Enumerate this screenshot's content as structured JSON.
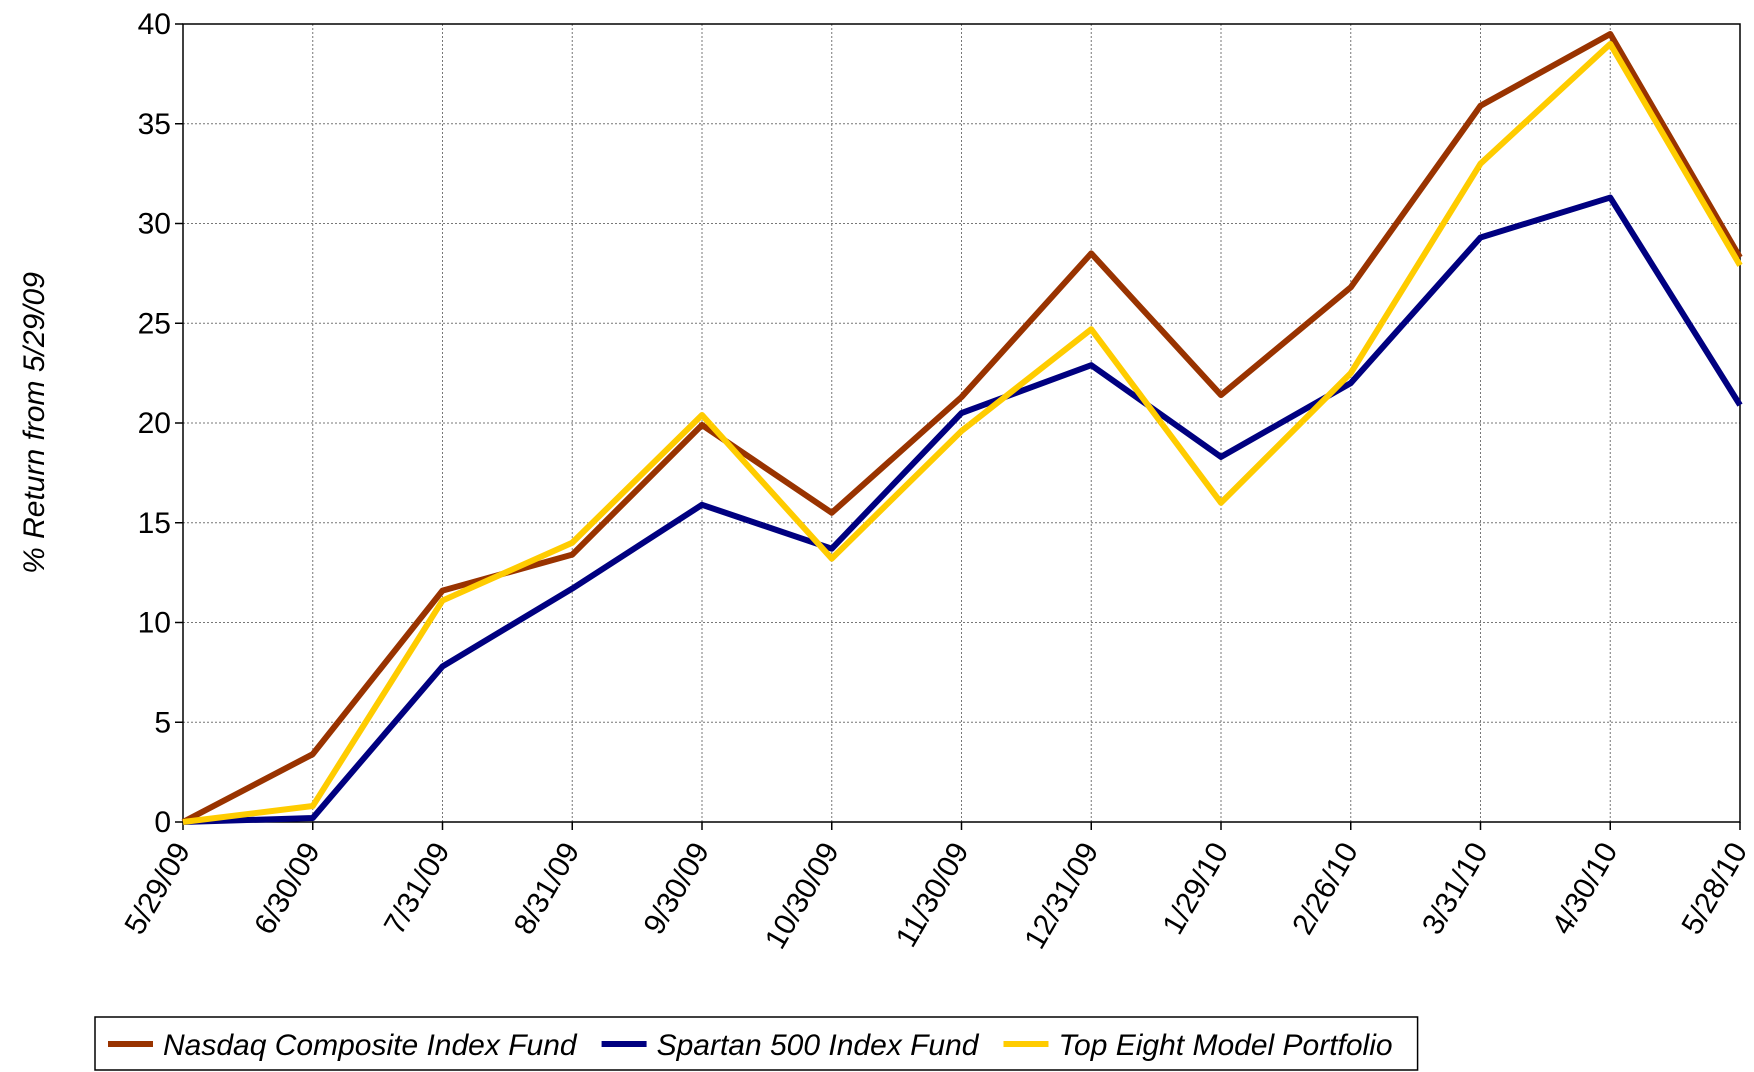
{
  "chart_data": {
    "type": "line",
    "y_label": "% Return from 5/29/09",
    "categories": [
      "5/29/09",
      "6/30/09",
      "7/31/09",
      "8/31/09",
      "9/30/09",
      "10/30/09",
      "11/30/09",
      "12/31/09",
      "1/29/10",
      "2/26/10",
      "3/31/10",
      "4/30/10",
      "5/28/10"
    ],
    "series": [
      {
        "name": "Nasdaq Composite Index Fund",
        "color": "#993300",
        "values": [
          0,
          3.4,
          11.6,
          13.4,
          19.9,
          15.5,
          21.3,
          28.5,
          21.4,
          26.8,
          35.9,
          39.5,
          28.3
        ]
      },
      {
        "name": "Spartan 500 Index Fund",
        "color": "#000080",
        "values": [
          0,
          0.2,
          7.8,
          11.7,
          15.9,
          13.7,
          20.5,
          22.9,
          18.3,
          22.0,
          29.3,
          31.3,
          20.9
        ]
      },
      {
        "name": "Top Eight Model Portfolio",
        "color": "#ffcc00",
        "values": [
          0,
          0.8,
          11.1,
          14.0,
          20.4,
          13.2,
          19.6,
          24.7,
          16.0,
          22.5,
          33.0,
          39.0,
          27.9
        ]
      }
    ],
    "ylim": [
      0,
      40
    ],
    "yticks": [
      0,
      5,
      10,
      15,
      20,
      25,
      30,
      35,
      40
    ],
    "grid": true,
    "legend": "bottom"
  }
}
